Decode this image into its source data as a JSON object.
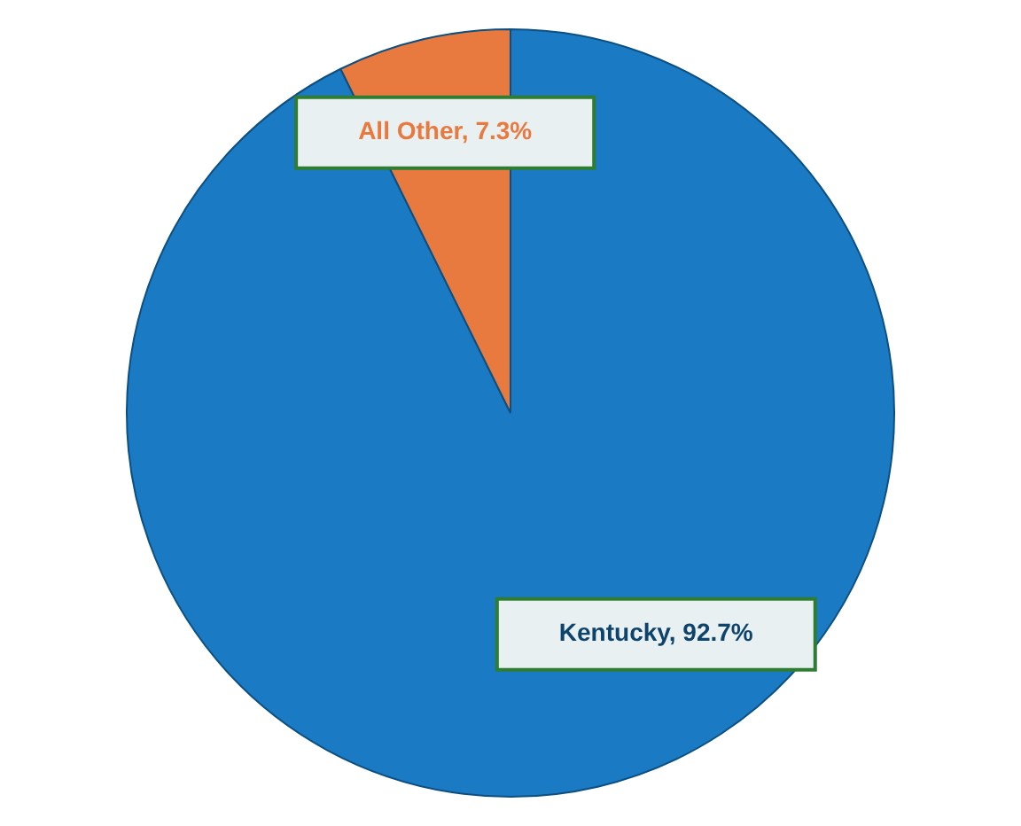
{
  "chart_data": {
    "type": "pie",
    "categories": [
      "Kentucky",
      "All Other"
    ],
    "values": [
      92.7,
      7.3
    ],
    "colors": [
      "#1a7bc4",
      "#e8793f"
    ],
    "value_labels": [
      "92.7%",
      "7.3%"
    ],
    "legend": false
  }
}
